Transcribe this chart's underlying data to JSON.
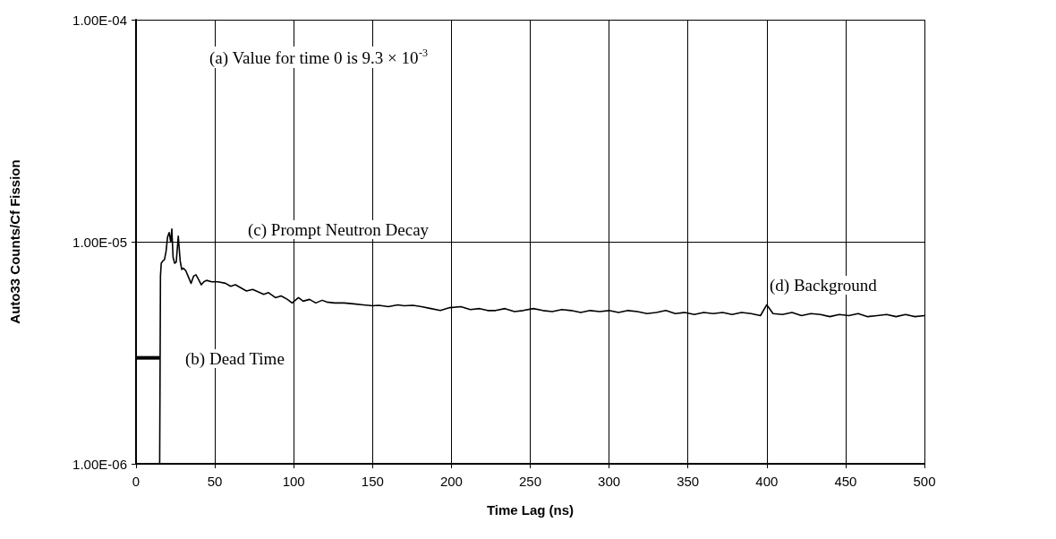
{
  "chart_data": {
    "type": "line",
    "xlabel": "Time Lag (ns)",
    "ylabel": "Auto33 Counts/Cf Fission",
    "x": [
      15,
      15.5,
      16,
      17,
      18,
      19,
      20,
      21,
      22,
      22.7,
      23.5,
      24.5,
      25.5,
      26.8,
      28,
      29,
      30,
      31.6,
      33,
      34.9,
      36.5,
      38,
      39.5,
      41.4,
      43,
      44.7,
      48,
      52,
      56.7,
      60,
      63,
      66.5,
      70,
      74,
      77.5,
      81,
      84,
      88.4,
      92,
      96,
      99,
      103,
      106,
      110,
      114,
      118,
      121,
      126,
      132,
      138,
      144,
      150,
      154,
      160,
      166,
      170,
      175.6,
      181,
      187,
      193,
      199,
      206,
      212,
      218,
      223,
      228,
      234,
      240,
      245.5,
      252,
      258,
      264,
      270,
      276,
      282,
      288,
      294,
      300,
      306,
      312,
      318,
      324,
      330,
      336,
      342,
      348,
      354,
      360,
      366,
      372,
      378,
      384,
      390,
      396,
      400,
      404,
      410,
      416,
      422,
      428,
      434,
      440,
      446,
      452,
      458,
      464,
      470,
      476,
      482,
      488,
      494,
      500
    ],
    "series": [
      {
        "color": "#000000",
        "values": [
          1e-06,
          7e-06,
          8e-06,
          8.2e-06,
          8.3e-06,
          9e-06,
          1.05e-05,
          1.1e-05,
          1e-05,
          1.14e-05,
          8.5e-06,
          8e-06,
          8.1e-06,
          1.06e-05,
          8.2e-06,
          7.5e-06,
          7.6e-06,
          7.4e-06,
          7e-06,
          6.5e-06,
          7e-06,
          7.1e-06,
          6.8e-06,
          6.4e-06,
          6.6e-06,
          6.7e-06,
          6.6e-06,
          6.6e-06,
          6.5e-06,
          6.3e-06,
          6.4e-06,
          6.2e-06,
          6e-06,
          6.1e-06,
          5.95e-06,
          5.8e-06,
          5.9e-06,
          5.6e-06,
          5.7e-06,
          5.5e-06,
          5.3e-06,
          5.6e-06,
          5.4e-06,
          5.5e-06,
          5.3e-06,
          5.45e-06,
          5.35e-06,
          5.3e-06,
          5.3e-06,
          5.25e-06,
          5.2e-06,
          5.15e-06,
          5.17e-06,
          5.1e-06,
          5.2e-06,
          5.15e-06,
          5.17e-06,
          5.1e-06,
          5e-06,
          4.9e-06,
          5.05e-06,
          5.1e-06,
          4.95e-06,
          5e-06,
          4.9e-06,
          4.9e-06,
          5e-06,
          4.85e-06,
          4.9e-06,
          5e-06,
          4.9e-06,
          4.85e-06,
          4.95e-06,
          4.9e-06,
          4.8e-06,
          4.9e-06,
          4.85e-06,
          4.9e-06,
          4.8e-06,
          4.9e-06,
          4.85e-06,
          4.75e-06,
          4.8e-06,
          4.9e-06,
          4.75e-06,
          4.8e-06,
          4.7e-06,
          4.8e-06,
          4.75e-06,
          4.8e-06,
          4.7e-06,
          4.8e-06,
          4.75e-06,
          4.65e-06,
          5.2e-06,
          4.75e-06,
          4.7e-06,
          4.8e-06,
          4.65e-06,
          4.75e-06,
          4.7e-06,
          4.6e-06,
          4.7e-06,
          4.65e-06,
          4.75e-06,
          4.6e-06,
          4.65e-06,
          4.7e-06,
          4.6e-06,
          4.7e-06,
          4.6e-06,
          4.65e-06
        ]
      },
      {
        "color": "#000000",
        "x": [
          0,
          15
        ],
        "values": [
          3e-06,
          3e-06
        ]
      }
    ],
    "annotations": [
      "(a) Value for time 0 is 9.3 × 10$^{-3}$",
      "(b) Dead Time",
      "(c) Prompt Neutron Decay",
      "(d) Background"
    ],
    "xlim": [
      0,
      500
    ],
    "xticks": [
      0,
      50,
      100,
      150,
      200,
      250,
      300,
      350,
      400,
      450,
      500
    ],
    "ylim": [
      1e-06,
      0.0001
    ],
    "yticks": [
      {
        "value": 1e-06,
        "label": "1.00E-06"
      },
      {
        "value": 1e-05,
        "label": "1.00E-05"
      },
      {
        "value": 0.0001,
        "label": "1.00E-04"
      }
    ],
    "log": "y",
    "grid": true,
    "marker": "none",
    "line_style": "solid"
  }
}
